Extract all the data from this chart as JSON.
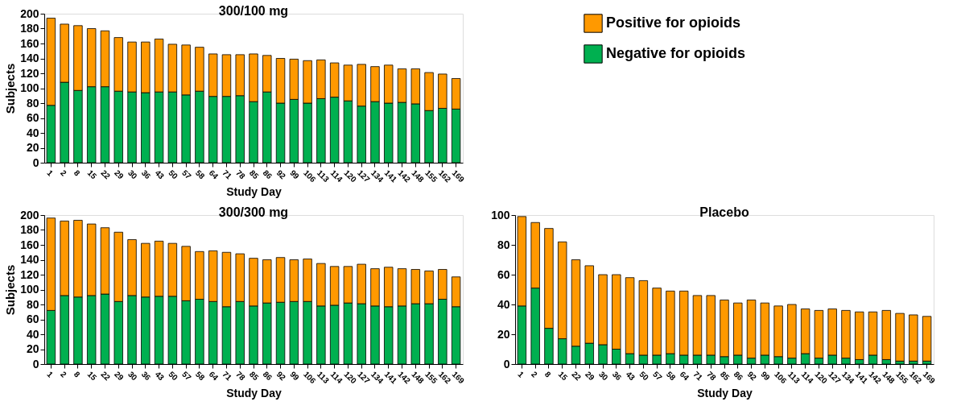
{
  "chart_data": [
    {
      "type": "bar",
      "title": "300/100 mg",
      "xlabel": "Study Day",
      "ylabel": "Subjects",
      "stacked": true,
      "legend": "right",
      "grid": false,
      "categories": [
        "1",
        "2",
        "8",
        "15",
        "22",
        "29",
        "30",
        "36",
        "43",
        "50",
        "57",
        "58",
        "64",
        "71",
        "78",
        "85",
        "86",
        "92",
        "99",
        "106",
        "113",
        "114",
        "120",
        "127",
        "134",
        "141",
        "142",
        "148",
        "155",
        "162",
        "169"
      ],
      "ylim": [
        0,
        200
      ],
      "yticks": [
        0,
        20,
        40,
        60,
        80,
        100,
        120,
        140,
        160,
        180,
        200
      ],
      "series": [
        {
          "name": "Negative for opioids",
          "color": "#00b050",
          "values": [
            77,
            108,
            97,
            102,
            102,
            96,
            95,
            94,
            95,
            95,
            91,
            96,
            89,
            89,
            90,
            82,
            95,
            80,
            85,
            80,
            86,
            88,
            83,
            76,
            82,
            80,
            81,
            79,
            70,
            73,
            72
          ]
        },
        {
          "name": "Positive for opioids",
          "color": "#ff9900",
          "values": [
            117,
            78,
            87,
            78,
            75,
            72,
            67,
            68,
            71,
            64,
            67,
            59,
            57,
            56,
            55,
            64,
            49,
            60,
            54,
            57,
            52,
            46,
            48,
            56,
            47,
            51,
            45,
            47,
            51,
            46,
            41
          ]
        }
      ]
    },
    {
      "type": "bar",
      "title": "300/300 mg",
      "xlabel": "Study Day",
      "ylabel": "Subjects",
      "stacked": true,
      "grid": false,
      "categories": [
        "1",
        "2",
        "8",
        "15",
        "22",
        "29",
        "30",
        "36",
        "43",
        "50",
        "57",
        "58",
        "64",
        "71",
        "78",
        "85",
        "86",
        "92",
        "99",
        "106",
        "113",
        "114",
        "120",
        "127",
        "134",
        "141",
        "142",
        "148",
        "155",
        "162",
        "169"
      ],
      "ylim": [
        0,
        200
      ],
      "yticks": [
        0,
        20,
        40,
        60,
        80,
        100,
        120,
        140,
        160,
        180,
        200
      ],
      "series": [
        {
          "color": "#00b050",
          "values": [
            72,
            92,
            90,
            92,
            94,
            84,
            92,
            90,
            91,
            91,
            85,
            87,
            84,
            77,
            84,
            78,
            82,
            83,
            84,
            84,
            78,
            79,
            82,
            81,
            78,
            77,
            78,
            81,
            81,
            87,
            77
          ]
        },
        {
          "color": "#ff9900",
          "values": [
            124,
            100,
            103,
            96,
            89,
            93,
            75,
            72,
            74,
            71,
            73,
            64,
            68,
            73,
            64,
            64,
            58,
            60,
            56,
            57,
            57,
            52,
            49,
            53,
            50,
            53,
            50,
            46,
            44,
            40,
            40
          ]
        }
      ]
    },
    {
      "type": "bar",
      "title": "Placebo",
      "xlabel": "Study Day",
      "stacked": true,
      "grid": false,
      "categories": [
        "1",
        "2",
        "8",
        "15",
        "22",
        "29",
        "30",
        "36",
        "43",
        "50",
        "57",
        "58",
        "64",
        "71",
        "78",
        "85",
        "86",
        "92",
        "99",
        "106",
        "113",
        "114",
        "120",
        "127",
        "134",
        "141",
        "142",
        "148",
        "155",
        "162",
        "169"
      ],
      "ylim": [
        0,
        100
      ],
      "yticks": [
        0,
        20,
        40,
        60,
        80,
        100
      ],
      "series": [
        {
          "color": "#00b050",
          "values": [
            39,
            51,
            24,
            17,
            12,
            14,
            13,
            10,
            7,
            6,
            6,
            7,
            6,
            6,
            6,
            5,
            6,
            4,
            6,
            5,
            4,
            7,
            4,
            6,
            4,
            3,
            6,
            3,
            2,
            2,
            2
          ]
        },
        {
          "color": "#ff9900",
          "values": [
            60,
            44,
            67,
            65,
            58,
            52,
            47,
            50,
            51,
            50,
            45,
            42,
            43,
            40,
            40,
            38,
            35,
            39,
            35,
            34,
            36,
            30,
            32,
            31,
            32,
            32,
            29,
            33,
            32,
            31,
            30
          ]
        }
      ]
    }
  ]
}
